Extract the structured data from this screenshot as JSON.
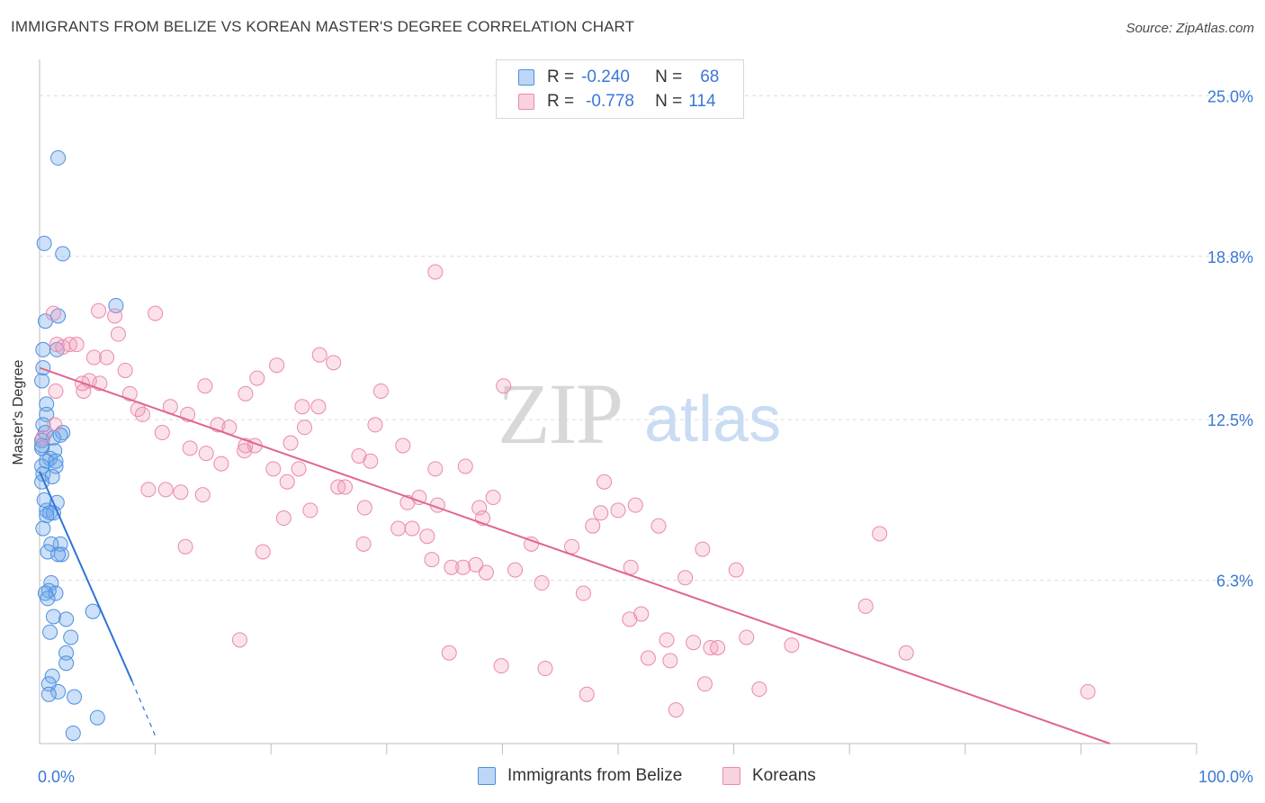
{
  "header": {
    "title": "IMMIGRANTS FROM BELIZE VS KOREAN MASTER'S DEGREE CORRELATION CHART",
    "source": "Source: ZipAtlas.com"
  },
  "watermark": {
    "zip": "ZIP",
    "atlas": "atlas"
  },
  "legend": {
    "rows": [
      {
        "r_label": "R =",
        "r_value": "-0.240",
        "n_label": "N =",
        "n_value": "68",
        "color": "#6ea5ec"
      },
      {
        "r_label": "R =",
        "r_value": "-0.778",
        "n_label": "N =",
        "n_value": "114",
        "color": "#f29bb8"
      }
    ]
  },
  "bottom_legend": {
    "items": [
      {
        "label": "Immigrants from Belize",
        "color": "#6ea5ec"
      },
      {
        "label": "Koreans",
        "color": "#f29bb8"
      }
    ]
  },
  "colors": {
    "blue_fill": "rgba(110,165,236,0.35)",
    "blue_stroke": "#4d8fe0",
    "blue_line": "#2f74d6",
    "pink_fill": "rgba(242,155,184,0.30)",
    "pink_stroke": "#e98aab",
    "pink_line": "#e0658f",
    "tick_label": "#3a78d4",
    "grid": "#dcdcdc"
  },
  "chart_data": {
    "type": "scatter",
    "title": "IMMIGRANTS FROM BELIZE VS KOREAN MASTER'S DEGREE CORRELATION CHART",
    "xlabel": "",
    "ylabel": "Master's Degree",
    "xlim": [
      0,
      100
    ],
    "ylim": [
      0,
      26.4
    ],
    "x_tick_labels": [
      "0.0%",
      "100.0%"
    ],
    "y_ticks": [
      6.3,
      12.5,
      18.8,
      25.0
    ],
    "y_tick_labels": [
      "6.3%",
      "12.5%",
      "18.8%",
      "25.0%"
    ],
    "grid": true,
    "series": [
      {
        "name": "Immigrants from Belize",
        "color": "#6ea5ec",
        "trend": {
          "x": [
            0,
            8.0
          ],
          "y": [
            10.5,
            2.4
          ],
          "dashed_to": [
            10.0,
            0.3
          ]
        },
        "points": [
          [
            1.6,
            22.6
          ],
          [
            0.4,
            19.3
          ],
          [
            2.0,
            18.9
          ],
          [
            6.6,
            16.9
          ],
          [
            0.5,
            16.3
          ],
          [
            1.6,
            16.5
          ],
          [
            1.5,
            15.2
          ],
          [
            0.3,
            15.2
          ],
          [
            0.3,
            14.5
          ],
          [
            0.2,
            14.0
          ],
          [
            0.6,
            13.1
          ],
          [
            0.6,
            12.7
          ],
          [
            0.3,
            12.3
          ],
          [
            0.5,
            12.0
          ],
          [
            2.0,
            12.0
          ],
          [
            1.2,
            11.8
          ],
          [
            0.2,
            11.7
          ],
          [
            0.2,
            11.4
          ],
          [
            1.3,
            11.3
          ],
          [
            0.9,
            11.0
          ],
          [
            0.6,
            10.9
          ],
          [
            1.4,
            10.9
          ],
          [
            0.2,
            10.7
          ],
          [
            1.4,
            10.7
          ],
          [
            0.3,
            10.4
          ],
          [
            1.1,
            10.3
          ],
          [
            0.2,
            10.1
          ],
          [
            1.5,
            9.3
          ],
          [
            0.6,
            9.0
          ],
          [
            0.9,
            8.9
          ],
          [
            1.2,
            8.9
          ],
          [
            0.6,
            8.8
          ],
          [
            0.3,
            8.3
          ],
          [
            1.8,
            7.7
          ],
          [
            1.0,
            7.7
          ],
          [
            1.9,
            7.3
          ],
          [
            0.7,
            7.4
          ],
          [
            1.6,
            7.3
          ],
          [
            1.0,
            6.2
          ],
          [
            0.8,
            5.9
          ],
          [
            1.4,
            5.8
          ],
          [
            0.5,
            5.8
          ],
          [
            0.7,
            5.6
          ],
          [
            4.6,
            5.1
          ],
          [
            1.2,
            4.9
          ],
          [
            2.3,
            4.8
          ],
          [
            0.9,
            4.3
          ],
          [
            2.7,
            4.1
          ],
          [
            2.3,
            3.5
          ],
          [
            2.3,
            3.1
          ],
          [
            1.1,
            2.6
          ],
          [
            0.8,
            2.3
          ],
          [
            1.6,
            2.0
          ],
          [
            0.8,
            1.9
          ],
          [
            3.0,
            1.8
          ],
          [
            5.0,
            1.0
          ],
          [
            2.9,
            0.4
          ],
          [
            0.2,
            11.5
          ],
          [
            0.4,
            9.4
          ],
          [
            1.8,
            11.9
          ]
        ]
      },
      {
        "name": "Koreans",
        "color": "#f29bb8",
        "trend": {
          "x": [
            0,
            92.5
          ],
          "y": [
            14.5,
            0.0
          ]
        },
        "points": [
          [
            34.2,
            18.2
          ],
          [
            5.1,
            16.7
          ],
          [
            1.2,
            16.6
          ],
          [
            6.5,
            16.5
          ],
          [
            10.0,
            16.6
          ],
          [
            6.8,
            15.8
          ],
          [
            1.5,
            15.4
          ],
          [
            2.6,
            15.4
          ],
          [
            2.0,
            15.3
          ],
          [
            3.2,
            15.4
          ],
          [
            24.2,
            15.0
          ],
          [
            25.4,
            14.7
          ],
          [
            4.7,
            14.9
          ],
          [
            5.8,
            14.9
          ],
          [
            20.5,
            14.6
          ],
          [
            7.4,
            14.4
          ],
          [
            4.3,
            14.0
          ],
          [
            18.8,
            14.1
          ],
          [
            3.7,
            13.9
          ],
          [
            5.2,
            13.9
          ],
          [
            14.3,
            13.8
          ],
          [
            3.8,
            13.6
          ],
          [
            1.4,
            13.6
          ],
          [
            7.8,
            13.5
          ],
          [
            17.8,
            13.5
          ],
          [
            29.5,
            13.6
          ],
          [
            40.1,
            13.8
          ],
          [
            11.3,
            13.0
          ],
          [
            22.7,
            13.0
          ],
          [
            24.1,
            13.0
          ],
          [
            8.5,
            12.9
          ],
          [
            8.9,
            12.7
          ],
          [
            12.8,
            12.7
          ],
          [
            15.4,
            12.3
          ],
          [
            16.4,
            12.2
          ],
          [
            22.9,
            12.2
          ],
          [
            29.0,
            12.3
          ],
          [
            1.3,
            12.3
          ],
          [
            10.6,
            12.0
          ],
          [
            0.3,
            11.8
          ],
          [
            21.7,
            11.6
          ],
          [
            17.8,
            11.5
          ],
          [
            18.6,
            11.5
          ],
          [
            31.4,
            11.5
          ],
          [
            13.0,
            11.4
          ],
          [
            14.4,
            11.2
          ],
          [
            27.6,
            11.1
          ],
          [
            15.7,
            10.8
          ],
          [
            17.7,
            11.3
          ],
          [
            20.2,
            10.6
          ],
          [
            22.4,
            10.6
          ],
          [
            28.6,
            10.9
          ],
          [
            34.2,
            10.6
          ],
          [
            36.8,
            10.7
          ],
          [
            48.8,
            10.1
          ],
          [
            21.4,
            10.1
          ],
          [
            25.8,
            9.9
          ],
          [
            26.4,
            9.9
          ],
          [
            9.4,
            9.8
          ],
          [
            10.9,
            9.8
          ],
          [
            12.2,
            9.7
          ],
          [
            14.1,
            9.6
          ],
          [
            32.8,
            9.5
          ],
          [
            39.2,
            9.5
          ],
          [
            34.4,
            9.2
          ],
          [
            38.0,
            9.1
          ],
          [
            23.4,
            9.0
          ],
          [
            28.1,
            9.1
          ],
          [
            31.8,
            9.3
          ],
          [
            51.5,
            9.2
          ],
          [
            48.5,
            8.9
          ],
          [
            50.0,
            9.0
          ],
          [
            21.1,
            8.7
          ],
          [
            38.3,
            8.7
          ],
          [
            31.0,
            8.3
          ],
          [
            32.2,
            8.3
          ],
          [
            47.8,
            8.4
          ],
          [
            53.5,
            8.4
          ],
          [
            72.6,
            8.1
          ],
          [
            33.5,
            8.0
          ],
          [
            42.5,
            7.7
          ],
          [
            46.0,
            7.6
          ],
          [
            12.6,
            7.6
          ],
          [
            19.3,
            7.4
          ],
          [
            28.0,
            7.7
          ],
          [
            57.3,
            7.5
          ],
          [
            33.9,
            7.1
          ],
          [
            37.7,
            6.9
          ],
          [
            35.6,
            6.8
          ],
          [
            36.6,
            6.8
          ],
          [
            51.1,
            6.8
          ],
          [
            60.2,
            6.7
          ],
          [
            38.6,
            6.6
          ],
          [
            41.1,
            6.7
          ],
          [
            55.8,
            6.4
          ],
          [
            43.4,
            6.2
          ],
          [
            47.0,
            5.8
          ],
          [
            71.4,
            5.3
          ],
          [
            52.0,
            5.0
          ],
          [
            51.0,
            4.8
          ],
          [
            54.2,
            4.0
          ],
          [
            61.1,
            4.1
          ],
          [
            65.0,
            3.8
          ],
          [
            17.3,
            4.0
          ],
          [
            56.5,
            3.9
          ],
          [
            58.0,
            3.7
          ],
          [
            58.6,
            3.7
          ],
          [
            74.9,
            3.5
          ],
          [
            35.4,
            3.5
          ],
          [
            52.6,
            3.3
          ],
          [
            54.5,
            3.2
          ],
          [
            39.9,
            3.0
          ],
          [
            43.7,
            2.9
          ],
          [
            57.5,
            2.3
          ],
          [
            62.2,
            2.1
          ],
          [
            90.6,
            2.0
          ],
          [
            47.3,
            1.9
          ],
          [
            55.0,
            1.3
          ]
        ]
      }
    ]
  }
}
